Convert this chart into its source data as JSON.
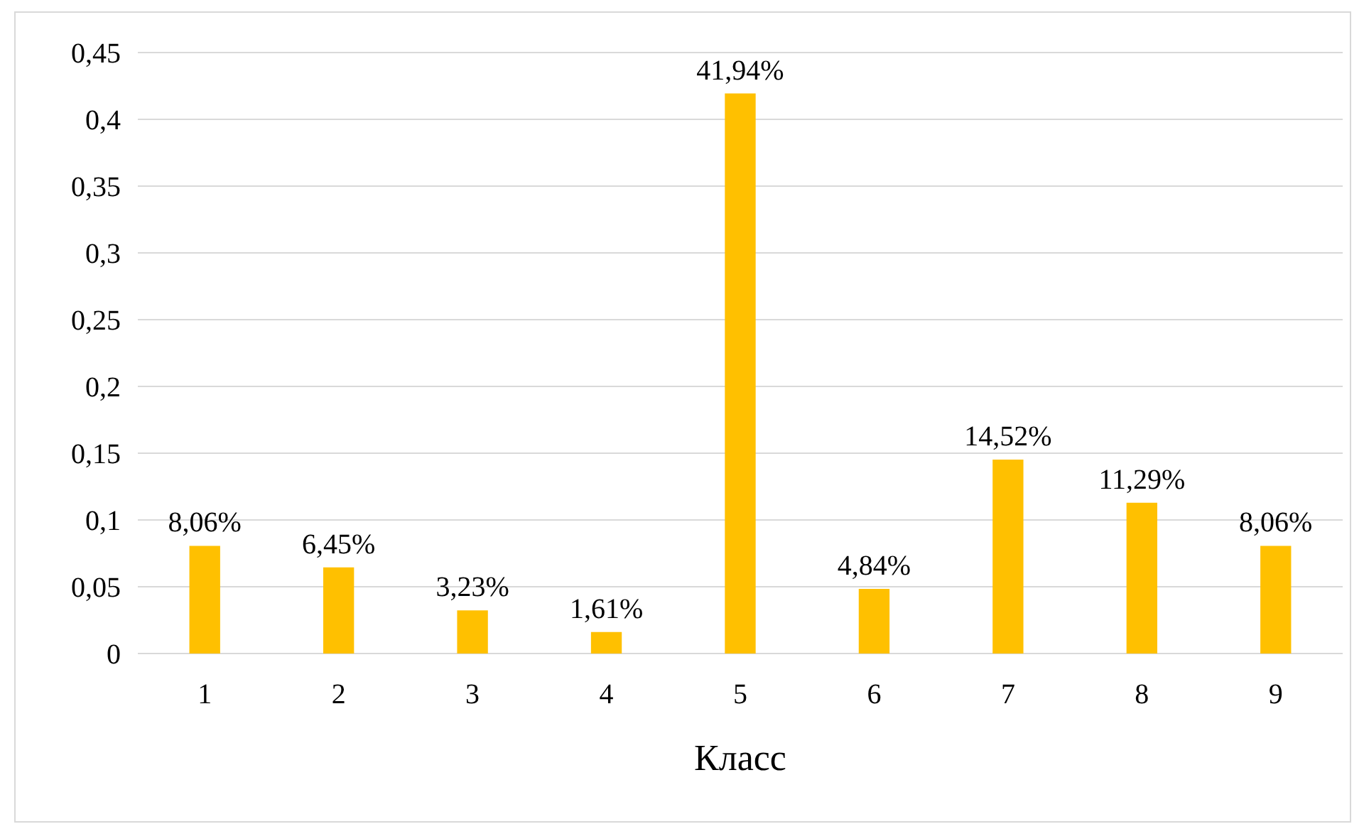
{
  "chart_data": {
    "type": "bar",
    "xlabel": "Класс",
    "categories": [
      "1",
      "2",
      "3",
      "4",
      "5",
      "6",
      "7",
      "8",
      "9"
    ],
    "values": [
      0.0806,
      0.0645,
      0.0323,
      0.0161,
      0.4194,
      0.0484,
      0.1452,
      0.1129,
      0.0806
    ],
    "value_labels": [
      "8,06%",
      "6,45%",
      "3,23%",
      "1,61%",
      "41,94%",
      "4,84%",
      "14,52%",
      "11,29%",
      "8,06%"
    ],
    "color": "#ffc000",
    "ylim": [
      0,
      0.45
    ],
    "yticks": [
      0,
      {
        "value": 0.05,
        "label": "0,05"
      },
      {
        "value": 0.1,
        "label": "0,1"
      },
      {
        "value": 0.15,
        "label": "0,15"
      },
      {
        "value": 0.2,
        "label": "0,2"
      },
      {
        "value": 0.25,
        "label": "0,25"
      },
      {
        "value": 0.3,
        "label": "0,3"
      },
      {
        "value": 0.35,
        "label": "0,35"
      },
      {
        "value": 0.4,
        "label": "0,4"
      },
      {
        "value": 0.45,
        "label": "0,45"
      }
    ],
    "grid": "y"
  }
}
